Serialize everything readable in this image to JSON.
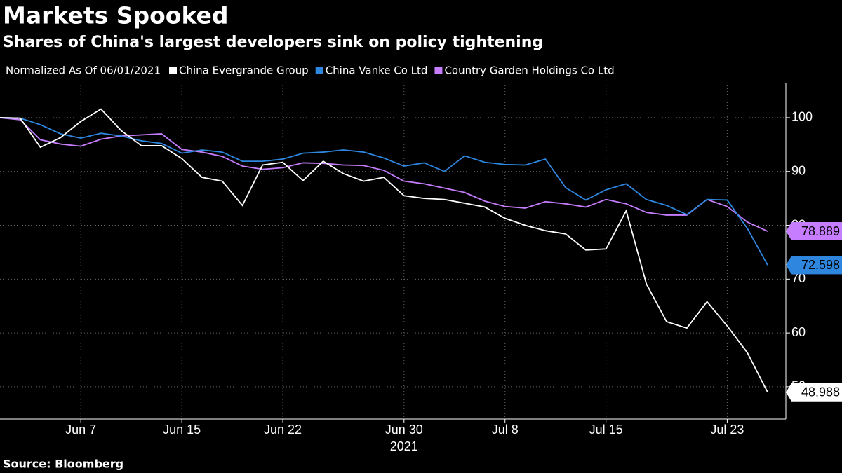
{
  "chart_data": {
    "type": "line",
    "title": "Markets Spooked",
    "subtitle": "Shares of China's largest developers sink on policy tightening",
    "legend_title": "Normalized As Of 06/01/2021",
    "source": "Source: Bloomberg",
    "x_year_label": "2021",
    "x": [
      "2021-06-01",
      "2021-06-02",
      "2021-06-03",
      "2021-06-04",
      "2021-06-07",
      "2021-06-08",
      "2021-06-09",
      "2021-06-10",
      "2021-06-11",
      "2021-06-15",
      "2021-06-16",
      "2021-06-17",
      "2021-06-18",
      "2021-06-21",
      "2021-06-22",
      "2021-06-23",
      "2021-06-24",
      "2021-06-25",
      "2021-06-28",
      "2021-06-29",
      "2021-06-30",
      "2021-07-02",
      "2021-07-05",
      "2021-07-06",
      "2021-07-07",
      "2021-07-08",
      "2021-07-09",
      "2021-07-12",
      "2021-07-13",
      "2021-07-14",
      "2021-07-15",
      "2021-07-16",
      "2021-07-19",
      "2021-07-20",
      "2021-07-21",
      "2021-07-22",
      "2021-07-23",
      "2021-07-26",
      "2021-07-27"
    ],
    "xticks": [
      {
        "value": "2021-06-07",
        "label": "Jun 7"
      },
      {
        "value": "2021-06-15",
        "label": "Jun 15"
      },
      {
        "value": "2021-06-22",
        "label": "Jun 22"
      },
      {
        "value": "2021-06-30",
        "label": "Jun 30"
      },
      {
        "value": "2021-07-08",
        "label": "Jul 8"
      },
      {
        "value": "2021-07-15",
        "label": "Jul 15"
      },
      {
        "value": "2021-07-23",
        "label": "Jul 23"
      }
    ],
    "ylim": [
      44,
      106.5
    ],
    "yticks": [
      50,
      60,
      70,
      80,
      90,
      100
    ],
    "grid": true,
    "series": [
      {
        "name": "China Evergrande Group",
        "color": "#ffffff",
        "values": [
          100,
          99.9,
          94.5,
          96.3,
          99.3,
          101.6,
          97.6,
          94.8,
          94.8,
          92.4,
          88.9,
          88.2,
          83.7,
          91.2,
          91.7,
          88.3,
          91.9,
          89.6,
          88.2,
          88.9,
          85.5,
          85.0,
          84.8,
          84.1,
          83.4,
          81.3,
          80.0,
          79.0,
          78.4,
          75.4,
          75.6,
          82.7,
          69.1,
          62.1,
          60.9,
          65.8,
          61.3,
          56.3,
          48.988
        ]
      },
      {
        "name": "China Vanke Co Ltd",
        "color": "#2e86de",
        "values": [
          100,
          99.9,
          98.7,
          97.0,
          96.2,
          97.1,
          96.6,
          95.7,
          95.2,
          93.4,
          94.0,
          93.6,
          91.9,
          91.9,
          92.3,
          93.4,
          93.6,
          94.0,
          93.6,
          92.5,
          91.0,
          91.6,
          90.0,
          92.9,
          91.7,
          91.3,
          91.2,
          92.3,
          87.0,
          84.7,
          86.6,
          87.7,
          84.8,
          83.7,
          82.0,
          84.8,
          84.7,
          79.4,
          72.598
        ]
      },
      {
        "name": "Country Garden Holdings Co Ltd",
        "color": "#c77dff",
        "values": [
          100,
          99.6,
          95.9,
          95.1,
          94.7,
          96.0,
          96.6,
          96.8,
          97.0,
          94.1,
          93.6,
          92.8,
          91.0,
          90.4,
          90.7,
          91.6,
          91.5,
          91.2,
          91.1,
          90.2,
          88.2,
          87.7,
          86.9,
          86.1,
          84.5,
          83.5,
          83.2,
          84.4,
          84.0,
          83.4,
          84.8,
          84.0,
          82.4,
          81.9,
          81.9,
          84.8,
          83.5,
          80.6,
          78.889
        ]
      }
    ]
  }
}
